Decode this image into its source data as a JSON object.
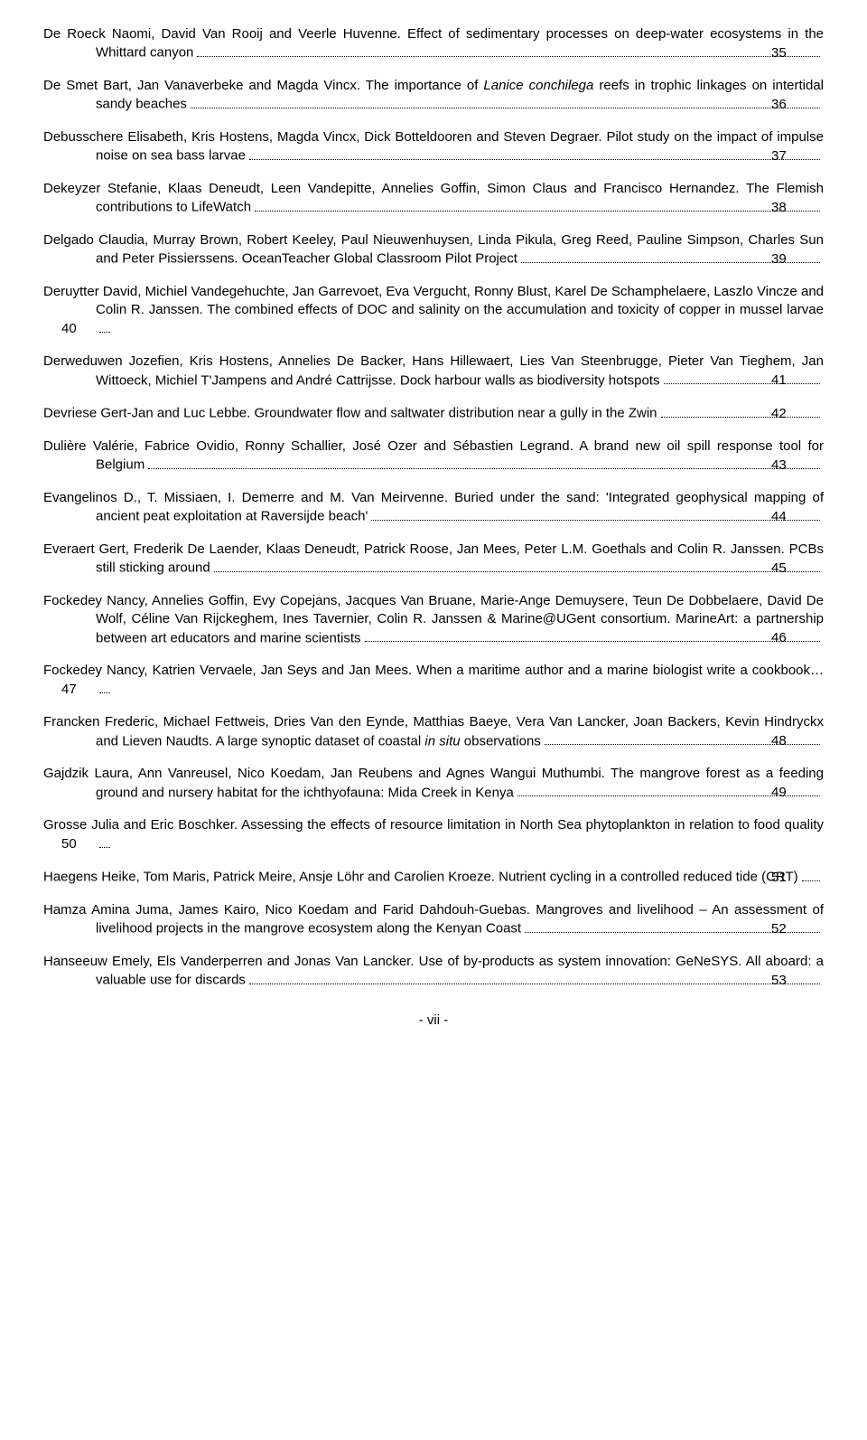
{
  "entries": [
    {
      "pre": "De Roeck Naomi, David Van Rooij and Veerle Huvenne. Effect of sedimentary processes on deep-water ecosystems in the Whittard canyon",
      "page": "35"
    },
    {
      "pre": "De Smet Bart, Jan Vanaverbeke and Magda Vincx. The importance of ",
      "italic1": "Lanice conchilega",
      "post": " reefs in trophic linkages on intertidal sandy beaches",
      "page": "36"
    },
    {
      "pre": "Debusschere Elisabeth, Kris Hostens, Magda Vincx, Dick Botteldooren and Steven Degraer. Pilot study on the impact of impulse noise on sea bass larvae",
      "page": "37"
    },
    {
      "pre": "Dekeyzer Stefanie, Klaas Deneudt, Leen Vandepitte, Annelies Goffin, Simon Claus and Francisco Hernandez. The Flemish contributions to LifeWatch",
      "page": "38"
    },
    {
      "pre": "Delgado Claudia, Murray Brown, Robert Keeley, Paul Nieuwenhuysen, Linda Pikula, Greg Reed, Pauline Simpson, Charles Sun and Peter Pissierssens. OceanTeacher Global Classroom Pilot Project",
      "page": "39"
    },
    {
      "pre": "Deruytter David, Michiel Vandegehuchte, Jan Garrevoet, Eva Vergucht, Ronny Blust, Karel De Schamphelaere, Laszlo Vincze and Colin R. Janssen. The combined effects of DOC and salinity on the accumulation and toxicity of copper in mussel larvae",
      "page": "40"
    },
    {
      "pre": "Derweduwen Jozefien, Kris Hostens, Annelies De Backer, Hans Hillewaert, Lies Van Steenbrugge, Pieter Van Tieghem, Jan Wittoeck, Michiel T'Jampens and André Cattrijsse. Dock harbour walls as biodiversity hotspots",
      "page": "41"
    },
    {
      "pre": "Devriese Gert-Jan and Luc Lebbe. Groundwater flow and saltwater distribution near a gully in the Zwin",
      "page": "42"
    },
    {
      "pre": "Dulière Valérie, Fabrice Ovidio, Ronny Schallier, José Ozer and Sébastien Legrand. A brand new oil spill response tool for Belgium",
      "page": "43"
    },
    {
      "pre": "Evangelinos D., T. Missiaen, I. Demerre and M. Van Meirvenne. Buried under the sand: 'Integrated geophysical mapping of ancient peat exploitation at Raversijde beach'",
      "page": "44"
    },
    {
      "pre": "Everaert Gert, Frederik De Laender, Klaas Deneudt, Patrick Roose, Jan Mees, Peter L.M. Goethals and Colin R. Janssen. PCBs still sticking around",
      "page": "45"
    },
    {
      "pre": "Fockedey Nancy, Annelies Goffin, Evy Copejans, Jacques Van Bruane, Marie-Ange Demuysere, Teun De Dobbelaere, David De Wolf, Céline Van Rijckeghem, Ines Tavernier, Colin R. Janssen & Marine@UGent consortium. MarineArt: a partnership between art educators and marine scientists",
      "page": "46"
    },
    {
      "pre": "Fockedey Nancy, Katrien Vervaele, Jan Seys and Jan Mees. When a maritime author and a marine biologist write a cookbook…",
      "page": "47"
    },
    {
      "pre": "Francken Frederic, Michael Fettweis, Dries Van den Eynde, Matthias Baeye, Vera Van Lancker, Joan Backers, Kevin Hindryckx and Lieven Naudts. A large synoptic dataset of coastal ",
      "italic1": "in situ",
      "post": " observations",
      "page": "48"
    },
    {
      "pre": "Gajdzik Laura, Ann Vanreusel, Nico Koedam, Jan Reubens and Agnes Wangui Muthumbi. The mangrove forest as a feeding ground and nursery habitat for the ichthyofauna: Mida Creek in Kenya",
      "page": "49"
    },
    {
      "pre": "Grosse Julia and Eric Boschker. Assessing the effects of resource limitation in North Sea phytoplankton in relation to food quality",
      "page": "50"
    },
    {
      "pre": "Haegens Heike, Tom Maris, Patrick Meire, Ansje Löhr and Carolien Kroeze. Nutrient cycling in a controlled reduced tide (CRT)",
      "page": "51"
    },
    {
      "pre": "Hamza Amina Juma, James Kairo, Nico Koedam and Farid Dahdouh-Guebas. Mangroves and livelihood – An assessment of livelihood projects in the mangrove ecosystem along the Kenyan Coast",
      "page": "52"
    },
    {
      "pre": "Hanseeuw Emely, Els Vanderperren and Jonas Van Lancker. Use of by-products as system innovation: GeNeSYS. All aboard: a valuable use for discards",
      "page": "53"
    }
  ],
  "footer": "- vii -"
}
